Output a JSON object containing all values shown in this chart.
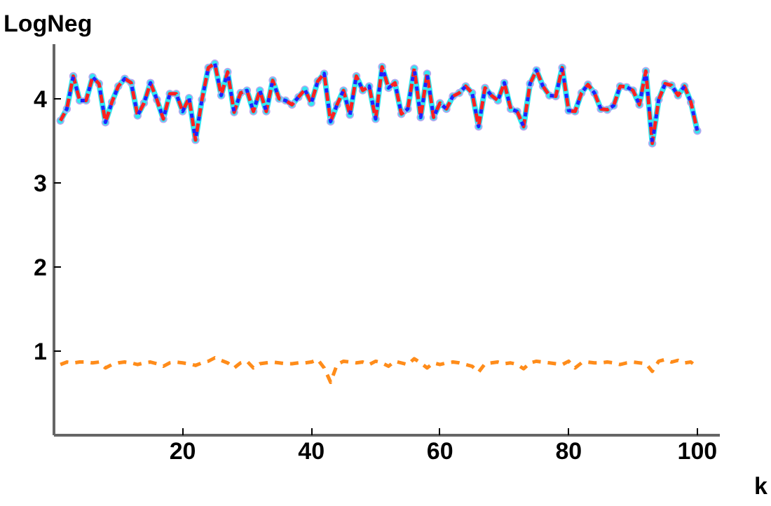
{
  "chart_data": {
    "type": "line",
    "xlabel": "k",
    "ylabel": "LogNeg",
    "xlim": [
      0,
      103.5
    ],
    "ylim": [
      0,
      4.65
    ],
    "xticks": [
      20,
      40,
      60,
      80,
      100
    ],
    "yticks": [
      1,
      2,
      3,
      4
    ],
    "grid": false,
    "x": [
      1,
      2,
      3,
      4,
      5,
      6,
      7,
      8,
      9,
      10,
      11,
      12,
      13,
      14,
      15,
      16,
      17,
      18,
      19,
      20,
      21,
      22,
      23,
      24,
      25,
      26,
      27,
      28,
      29,
      30,
      31,
      32,
      33,
      34,
      35,
      36,
      37,
      38,
      39,
      40,
      41,
      42,
      43,
      44,
      45,
      46,
      47,
      48,
      49,
      50,
      51,
      52,
      53,
      54,
      55,
      56,
      57,
      58,
      59,
      60,
      61,
      62,
      63,
      64,
      65,
      66,
      67,
      68,
      69,
      70,
      71,
      72,
      73,
      74,
      75,
      76,
      77,
      78,
      79,
      80,
      81,
      82,
      83,
      84,
      85,
      86,
      87,
      88,
      89,
      90,
      91,
      92,
      93,
      94,
      95,
      96,
      97,
      98,
      99,
      100
    ],
    "series": [
      {
        "color": "#33e6f0",
        "line_style": "solid",
        "marker": "circle",
        "values": [
          3.74,
          3.88,
          4.27,
          3.98,
          3.98,
          4.26,
          4.18,
          3.72,
          3.96,
          4.15,
          4.24,
          4.19,
          3.8,
          3.95,
          4.19,
          3.99,
          3.76,
          4.06,
          4.06,
          3.85,
          4.01,
          3.51,
          3.99,
          4.37,
          4.42,
          4.04,
          4.32,
          3.84,
          4.07,
          4.1,
          3.85,
          4.1,
          3.85,
          4.22,
          4.0,
          3.98,
          3.93,
          4.02,
          4.11,
          3.95,
          4.21,
          4.3,
          3.73,
          3.93,
          4.1,
          3.81,
          4.27,
          4.1,
          4.15,
          3.76,
          4.38,
          4.13,
          4.19,
          3.82,
          3.88,
          4.36,
          3.78,
          4.3,
          3.78,
          3.95,
          3.88,
          4.03,
          4.07,
          4.15,
          4.07,
          3.67,
          4.13,
          4.04,
          3.98,
          4.19,
          3.88,
          3.85,
          3.67,
          4.18,
          4.34,
          4.15,
          4.04,
          4.03,
          4.37,
          3.86,
          3.85,
          4.07,
          4.17,
          4.07,
          3.88,
          3.87,
          3.92,
          4.15,
          4.14,
          4.1,
          3.93,
          4.33,
          3.47,
          3.99,
          4.18,
          4.16,
          4.04,
          4.15,
          3.96,
          3.62
        ]
      },
      {
        "color": "#ff2020",
        "line_style": "dashed",
        "marker": "none",
        "values": [
          3.74,
          3.88,
          4.27,
          3.98,
          3.98,
          4.26,
          4.18,
          3.72,
          3.96,
          4.15,
          4.24,
          4.19,
          3.8,
          3.95,
          4.19,
          3.99,
          3.76,
          4.06,
          4.06,
          3.85,
          4.01,
          3.51,
          3.99,
          4.37,
          4.42,
          4.04,
          4.32,
          3.84,
          4.07,
          4.1,
          3.85,
          4.1,
          3.85,
          4.22,
          4.0,
          3.98,
          3.93,
          4.02,
          4.11,
          3.95,
          4.21,
          4.3,
          3.73,
          3.93,
          4.1,
          3.81,
          4.27,
          4.1,
          4.15,
          3.76,
          4.38,
          4.13,
          4.19,
          3.82,
          3.88,
          4.36,
          3.78,
          4.3,
          3.78,
          3.95,
          3.88,
          4.03,
          4.07,
          4.15,
          4.07,
          3.67,
          4.13,
          4.04,
          3.98,
          4.19,
          3.88,
          3.85,
          3.67,
          4.18,
          4.34,
          4.15,
          4.04,
          4.03,
          4.37,
          3.86,
          3.85,
          4.07,
          4.17,
          4.07,
          3.88,
          3.87,
          3.92,
          4.15,
          4.14,
          4.1,
          3.93,
          4.33,
          3.47,
          3.99,
          4.18,
          4.16,
          4.04,
          4.15,
          3.96,
          3.62
        ]
      },
      {
        "color": "#2020ff",
        "line_style": "dotted",
        "marker": "none",
        "values": [
          3.74,
          3.88,
          4.27,
          3.98,
          3.98,
          4.26,
          4.18,
          3.72,
          3.96,
          4.15,
          4.24,
          4.19,
          3.8,
          3.95,
          4.19,
          3.99,
          3.76,
          4.06,
          4.06,
          3.85,
          4.01,
          3.51,
          3.99,
          4.37,
          4.42,
          4.04,
          4.32,
          3.84,
          4.07,
          4.1,
          3.85,
          4.1,
          3.85,
          4.22,
          4.0,
          3.98,
          3.93,
          4.02,
          4.11,
          3.95,
          4.21,
          4.3,
          3.73,
          3.93,
          4.1,
          3.81,
          4.27,
          4.1,
          4.15,
          3.76,
          4.38,
          4.13,
          4.19,
          3.82,
          3.88,
          4.36,
          3.78,
          4.3,
          3.78,
          3.95,
          3.88,
          4.03,
          4.07,
          4.15,
          4.07,
          3.67,
          4.13,
          4.04,
          3.98,
          4.19,
          3.88,
          3.85,
          3.67,
          4.18,
          4.34,
          4.15,
          4.04,
          4.03,
          4.37,
          3.86,
          3.85,
          4.07,
          4.17,
          4.07,
          3.88,
          3.87,
          3.92,
          4.15,
          4.14,
          4.1,
          3.93,
          4.33,
          3.47,
          3.99,
          4.18,
          4.16,
          4.04,
          4.15,
          3.96,
          3.62
        ]
      },
      {
        "color": "#ff8c1a",
        "line_style": "dashed",
        "marker": "none",
        "values": [
          0.84,
          0.87,
          0.86,
          0.87,
          0.87,
          0.86,
          0.87,
          0.8,
          0.84,
          0.86,
          0.87,
          0.86,
          0.84,
          0.86,
          0.87,
          0.85,
          0.82,
          0.86,
          0.87,
          0.86,
          0.85,
          0.83,
          0.86,
          0.88,
          0.92,
          0.89,
          0.86,
          0.8,
          0.86,
          0.88,
          0.8,
          0.85,
          0.86,
          0.87,
          0.86,
          0.85,
          0.85,
          0.86,
          0.86,
          0.87,
          0.9,
          0.8,
          0.63,
          0.84,
          0.88,
          0.87,
          0.86,
          0.87,
          0.84,
          0.88,
          0.86,
          0.82,
          0.88,
          0.86,
          0.84,
          0.91,
          0.86,
          0.8,
          0.86,
          0.84,
          0.86,
          0.87,
          0.86,
          0.84,
          0.82,
          0.75,
          0.85,
          0.86,
          0.87,
          0.85,
          0.86,
          0.84,
          0.79,
          0.86,
          0.88,
          0.87,
          0.86,
          0.85,
          0.84,
          0.88,
          0.8,
          0.86,
          0.87,
          0.86,
          0.86,
          0.87,
          0.86,
          0.84,
          0.86,
          0.87,
          0.86,
          0.85,
          0.76,
          0.88,
          0.9,
          0.87,
          0.89,
          0.86,
          0.87,
          0.81
        ]
      }
    ]
  }
}
